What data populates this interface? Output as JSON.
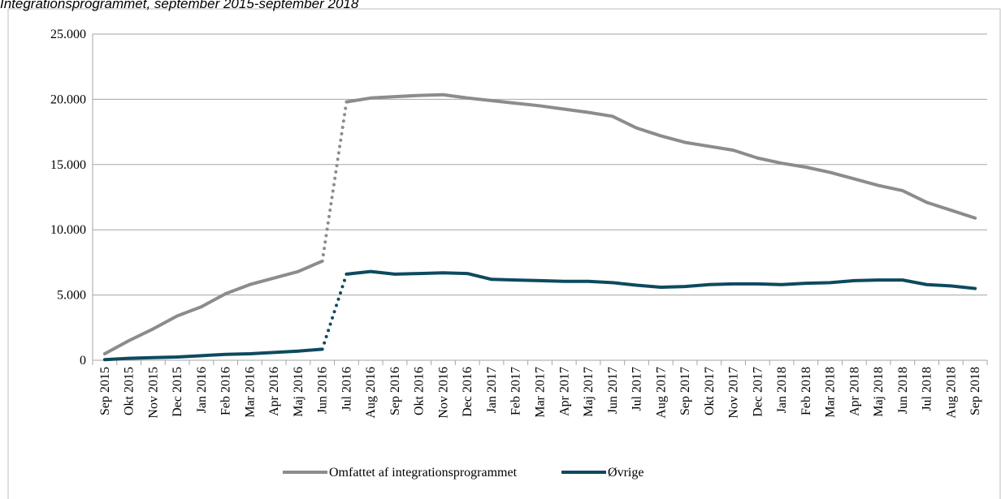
{
  "chart_data": {
    "type": "line",
    "title": "Integrationsprogrammet, september 2015-september 2018",
    "categories": [
      "Sep 2015",
      "Okt 2015",
      "Nov 2015",
      "Dec 2015",
      "Jan 2016",
      "Feb 2016",
      "Mar 2016",
      "Apr 2016",
      "Maj 2016",
      "Jun 2016",
      "Jul 2016",
      "Aug 2016",
      "Sep 2016",
      "Okt 2016",
      "Nov 2016",
      "Dec 2016",
      "Jan 2017",
      "Feb 2017",
      "Mar 2017",
      "Apr 2017",
      "Maj 2017",
      "Jun 2017",
      "Jul 2017",
      "Aug 2017",
      "Sep 2017",
      "Okt 2017",
      "Nov 2017",
      "Dec 2017",
      "Jan 2018",
      "Feb 2018",
      "Mar 2018",
      "Apr 2018",
      "Maj 2018",
      "Jun 2018",
      "Jul 2018",
      "Aug 2018",
      "Sep 2018"
    ],
    "series": [
      {
        "name": "Omfattet af integrationsprogrammet",
        "color": "#8c8c8c",
        "values": [
          500,
          1500,
          2400,
          3400,
          4100,
          5100,
          5800,
          6300,
          6800,
          7600,
          19800,
          20100,
          20200,
          20300,
          20350,
          20100,
          19900,
          19700,
          19500,
          19250,
          19000,
          18700,
          17800,
          17200,
          16700,
          16400,
          16100,
          15500,
          15100,
          14800,
          14400,
          13900,
          13400,
          13000,
          12100,
          11500,
          10900
        ]
      },
      {
        "name": "Øvrige",
        "color": "#0d4a5e",
        "values": [
          50,
          150,
          200,
          250,
          350,
          450,
          500,
          600,
          700,
          850,
          6600,
          6800,
          6600,
          6650,
          6700,
          6650,
          6200,
          6150,
          6100,
          6050,
          6050,
          5950,
          5750,
          5600,
          5650,
          5800,
          5850,
          5850,
          5800,
          5900,
          5950,
          6100,
          6150,
          6150,
          5800,
          5700,
          5500
        ]
      }
    ],
    "dotted_segment_start": 9,
    "ylim": [
      0,
      25000
    ],
    "yticks": [
      0,
      {
        "value": 5000,
        "label": "5.000"
      },
      {
        "value": 10000,
        "label": "10.000"
      },
      {
        "value": 15000,
        "label": "15.000"
      },
      {
        "value": 20000,
        "label": "20.000"
      },
      {
        "value": 25000,
        "label": "25.000"
      }
    ],
    "grid": true,
    "legend": "bottom"
  }
}
